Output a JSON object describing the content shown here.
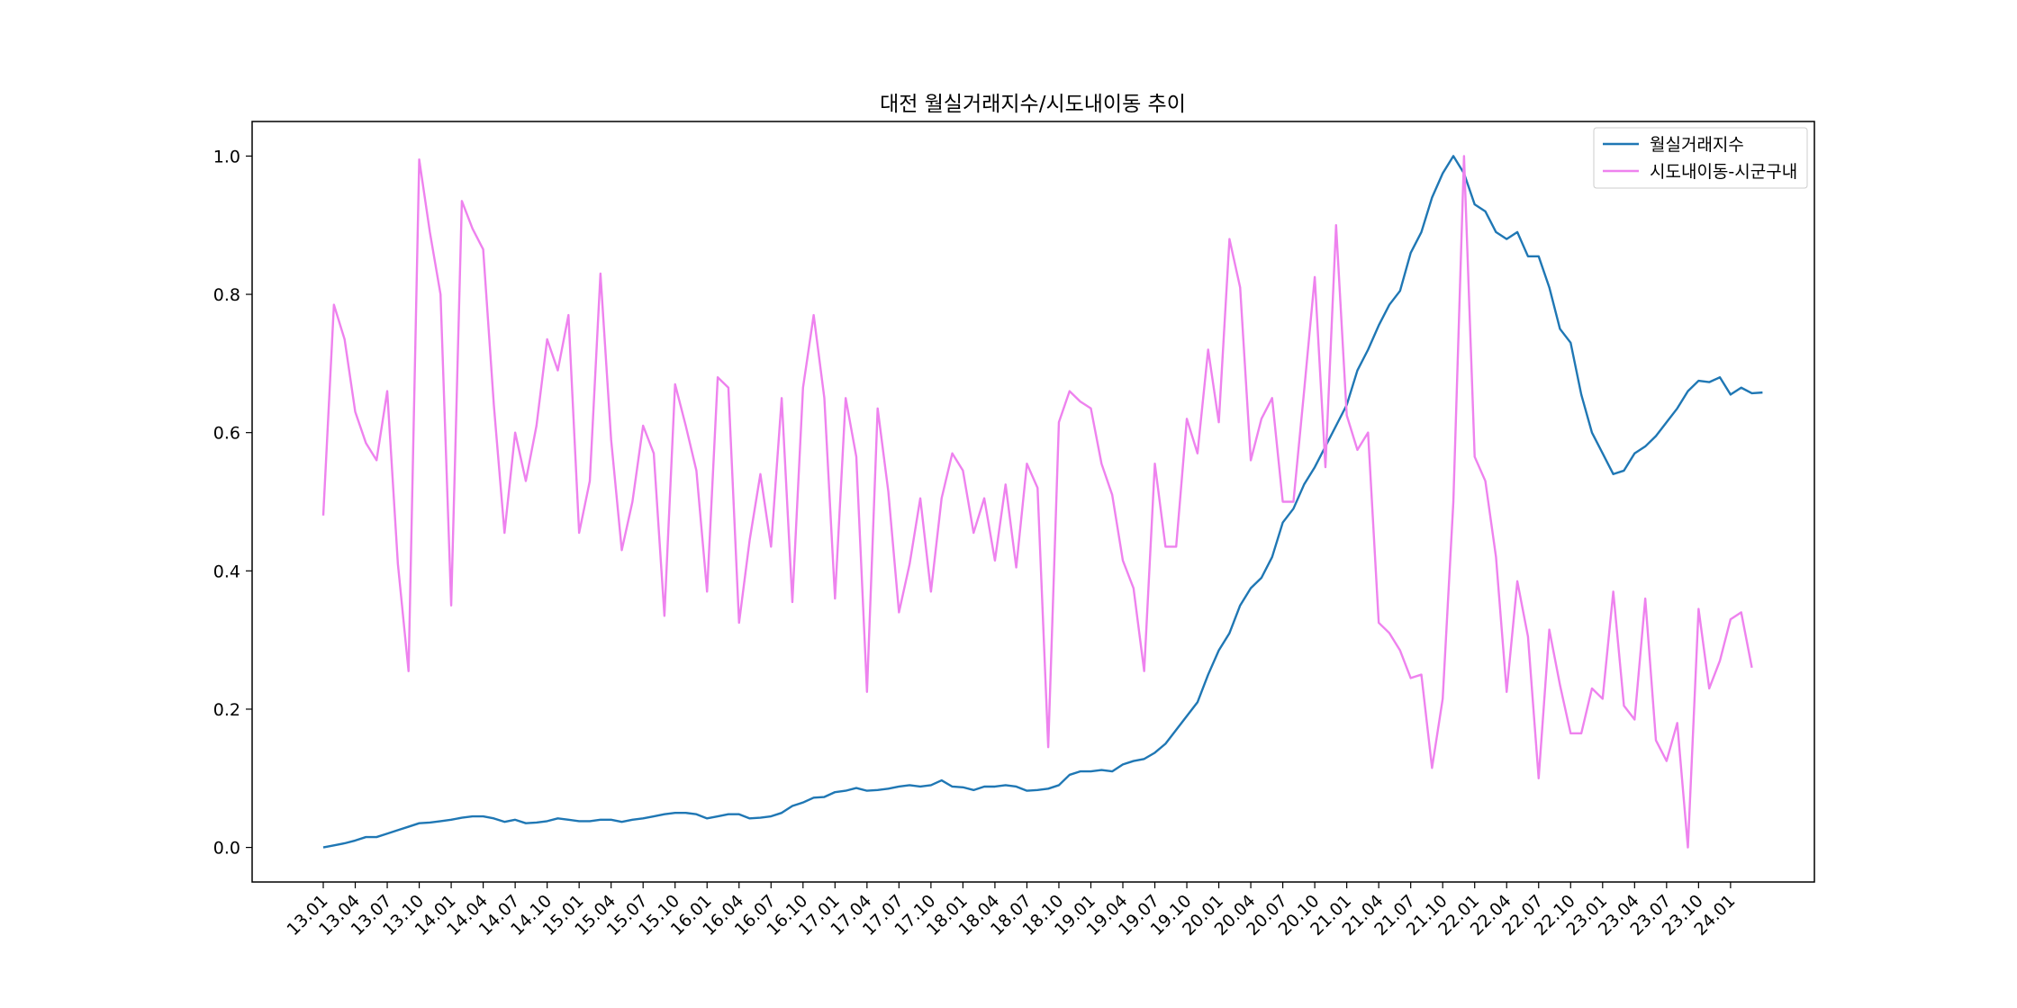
{
  "chart_data": {
    "type": "line",
    "title": "대전 월실거래지수/시도내이동 추이",
    "xlabel": "",
    "ylabel": "",
    "x_ticks": [
      "13.01",
      "13.04",
      "13.07",
      "13.10",
      "14.01",
      "14.04",
      "14.07",
      "14.10",
      "15.01",
      "15.04",
      "15.07",
      "15.10",
      "16.01",
      "16.04",
      "16.07",
      "16.10",
      "17.01",
      "17.04",
      "17.07",
      "17.10",
      "18.01",
      "18.04",
      "18.07",
      "18.10",
      "19.01",
      "19.04",
      "19.07",
      "19.10",
      "20.01",
      "20.04",
      "20.07",
      "20.10",
      "21.01",
      "21.04",
      "21.07",
      "21.10",
      "22.01",
      "22.04",
      "22.07",
      "22.10",
      "23.01",
      "23.04",
      "23.07",
      "23.10",
      "24.01"
    ],
    "y_ticks": [
      "0.0",
      "0.2",
      "0.4",
      "0.6",
      "0.8",
      "1.0"
    ],
    "ylim": [
      -0.05,
      1.05
    ],
    "grid": false,
    "legend_position": "top-right",
    "series": [
      {
        "name": "월실거래지수",
        "color": "#1f77b4",
        "values": [
          0.0,
          0.003,
          0.006,
          0.01,
          0.015,
          0.015,
          0.02,
          0.025,
          0.03,
          0.035,
          0.036,
          0.038,
          0.04,
          0.043,
          0.045,
          0.045,
          0.042,
          0.037,
          0.04,
          0.035,
          0.036,
          0.038,
          0.042,
          0.04,
          0.038,
          0.038,
          0.04,
          0.04,
          0.037,
          0.04,
          0.042,
          0.045,
          0.048,
          0.05,
          0.05,
          0.048,
          0.042,
          0.045,
          0.048,
          0.048,
          0.042,
          0.043,
          0.045,
          0.05,
          0.06,
          0.065,
          0.072,
          0.073,
          0.08,
          0.082,
          0.086,
          0.082,
          0.083,
          0.085,
          0.088,
          0.09,
          0.088,
          0.09,
          0.097,
          0.088,
          0.087,
          0.083,
          0.088,
          0.088,
          0.09,
          0.088,
          0.082,
          0.083,
          0.085,
          0.09,
          0.105,
          0.11,
          0.11,
          0.112,
          0.11,
          0.12,
          0.125,
          0.128,
          0.137,
          0.15,
          0.17,
          0.19,
          0.21,
          0.25,
          0.285,
          0.31,
          0.35,
          0.375,
          0.39,
          0.42,
          0.47,
          0.49,
          0.525,
          0.55,
          0.58,
          0.61,
          0.64,
          0.69,
          0.72,
          0.755,
          0.785,
          0.805,
          0.86,
          0.89,
          0.94,
          0.975,
          1.0,
          0.975,
          0.93,
          0.92,
          0.89,
          0.88,
          0.89,
          0.855,
          0.855,
          0.81,
          0.75,
          0.73,
          0.655,
          0.6,
          0.57,
          0.54,
          0.545,
          0.57,
          0.58,
          0.595,
          0.615,
          0.635,
          0.66,
          0.675,
          0.673,
          0.68,
          0.655,
          0.665,
          0.657,
          0.658
        ]
      },
      {
        "name": "시도내이동-시군구내",
        "color": "#ee82ee",
        "values": [
          0.48,
          0.785,
          0.735,
          0.63,
          0.585,
          0.56,
          0.66,
          0.41,
          0.255,
          0.995,
          0.89,
          0.8,
          0.35,
          0.935,
          0.895,
          0.865,
          0.64,
          0.455,
          0.6,
          0.53,
          0.61,
          0.735,
          0.69,
          0.77,
          0.455,
          0.53,
          0.83,
          0.59,
          0.43,
          0.5,
          0.61,
          0.57,
          0.335,
          0.67,
          0.61,
          0.545,
          0.37,
          0.68,
          0.665,
          0.325,
          0.445,
          0.54,
          0.435,
          0.65,
          0.355,
          0.665,
          0.77,
          0.65,
          0.36,
          0.65,
          0.565,
          0.225,
          0.635,
          0.515,
          0.34,
          0.41,
          0.505,
          0.37,
          0.505,
          0.57,
          0.545,
          0.455,
          0.505,
          0.415,
          0.525,
          0.405,
          0.555,
          0.52,
          0.145,
          0.615,
          0.66,
          0.645,
          0.635,
          0.555,
          0.51,
          0.415,
          0.375,
          0.255,
          0.555,
          0.435,
          0.435,
          0.62,
          0.57,
          0.72,
          0.615,
          0.88,
          0.81,
          0.56,
          0.62,
          0.65,
          0.5,
          0.5,
          0.66,
          0.825,
          0.55,
          0.9,
          0.625,
          0.575,
          0.6,
          0.325,
          0.31,
          0.285,
          0.245,
          0.25,
          0.115,
          0.215,
          0.5,
          1.0,
          0.565,
          0.53,
          0.42,
          0.225,
          0.385,
          0.305,
          0.1,
          0.315,
          0.235,
          0.165,
          0.165,
          0.23,
          0.215,
          0.37,
          0.205,
          0.185,
          0.36,
          0.155,
          0.125,
          0.18,
          0.0,
          0.345,
          0.23,
          0.27,
          0.33,
          0.34,
          0.26
        ]
      }
    ]
  }
}
